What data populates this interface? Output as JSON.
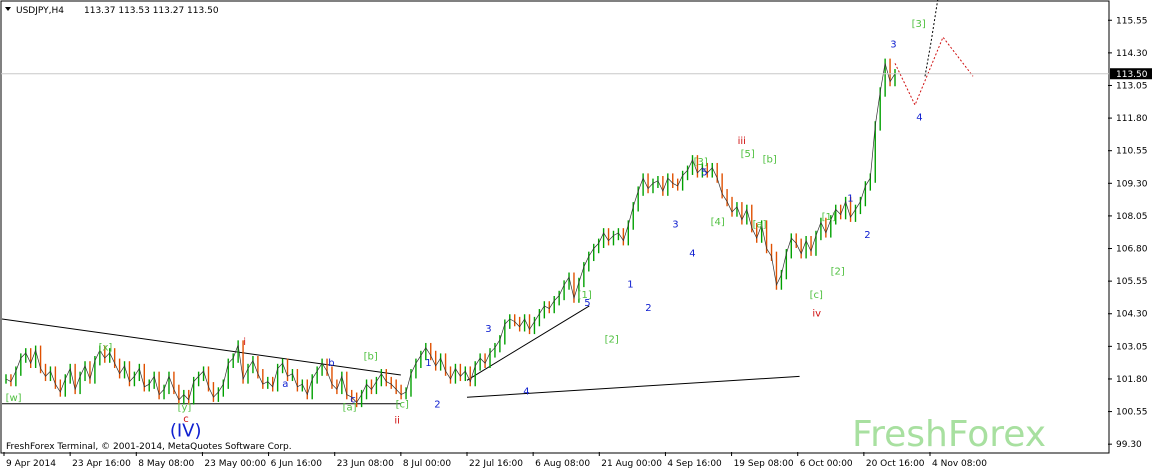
{
  "header": {
    "symbol": "USDJPY,H4",
    "ohlc": "113.37 113.53 113.27 113.50"
  },
  "price_marker": {
    "value": "113.50"
  },
  "watermark": "FreshForex",
  "copyright": "FreshForex Terminal, © 2001-2014, MetaQuotes Software Corp.",
  "colors": {
    "up": "#00a000",
    "down": "#e05000",
    "green_label": "#50c040",
    "blue_label": "#1020d0",
    "red_label": "#d01010",
    "grid": "#c8c8c8",
    "axis": "#000000",
    "watermark": "#a8e0a0"
  },
  "chart_data": {
    "type": "line",
    "title": "",
    "xlabel": "",
    "ylabel": "",
    "ylim": [
      99.0,
      116.25
    ],
    "y_ticks": [
      "115.55",
      "114.30",
      "113.05",
      "111.80",
      "110.55",
      "109.30",
      "108.05",
      "106.80",
      "105.55",
      "104.30",
      "103.05",
      "101.80",
      "100.55",
      "99.30"
    ],
    "x_ticks": [
      "9 Apr 2014",
      "23 Apr 16:00",
      "8 May 08:00",
      "23 May 00:00",
      "6 Jun 16:00",
      "23 Jun 08:00",
      "8 Jul 00:00",
      "22 Jul 16:00",
      "6 Aug 08:00",
      "21 Aug 00:00",
      "4 Sep 16:00",
      "19 Sep 08:00",
      "6 Oct 00:00",
      "20 Oct 16:00",
      "4 Nov 08:00"
    ],
    "series": [
      {
        "values": [
          101.8,
          101.7,
          102.1,
          102.6,
          102.8,
          102.4,
          102.9,
          102.2,
          101.9,
          102.1,
          101.6,
          101.3,
          101.8,
          102.2,
          101.4,
          101.9,
          102.3,
          101.8,
          102.5,
          102.9,
          102.6,
          102.8,
          102.4,
          102.0,
          102.3,
          101.7,
          101.9,
          102.2,
          101.5,
          101.6,
          101.9,
          101.2,
          101.4,
          101.9,
          101.4,
          101.0,
          101.2,
          101.0,
          101.7,
          101.9,
          102.1,
          101.5,
          101.1,
          101.3,
          101.6,
          102.4,
          102.6,
          103.1,
          101.8,
          102.2,
          102.5,
          102.0,
          101.6,
          101.7,
          101.5,
          102.2,
          102.4,
          101.9,
          102.0,
          101.5,
          101.6,
          101.2,
          101.8,
          102.1,
          102.4,
          102.1,
          101.6,
          101.4,
          101.9,
          101.2,
          101.1,
          100.9,
          101.2,
          101.6,
          101.4,
          101.7,
          102.0,
          101.7,
          101.6,
          101.4,
          101.2,
          101.3,
          102.0,
          102.4,
          102.7,
          103.0,
          102.7,
          102.3,
          102.6,
          102.1,
          101.8,
          102.2,
          101.9,
          102.1,
          101.7,
          102.3,
          102.6,
          102.4,
          102.8,
          103.0,
          103.3,
          103.9,
          104.1,
          104.0,
          103.8,
          104.1,
          103.7,
          104.0,
          104.3,
          104.6,
          104.5,
          104.8,
          105.0,
          105.4,
          105.7,
          104.9,
          105.5,
          106.1,
          106.5,
          106.8,
          107.0,
          107.4,
          107.1,
          107.3,
          107.4,
          107.1,
          107.7,
          108.4,
          109.0,
          109.5,
          109.1,
          109.3,
          109.4,
          109.0,
          109.5,
          109.3,
          109.2,
          109.6,
          109.8,
          110.2,
          109.7,
          109.9,
          109.7,
          109.9,
          109.5,
          108.9,
          108.6,
          108.2,
          108.4,
          107.9,
          108.3,
          107.6,
          107.2,
          107.7,
          106.8,
          106.5,
          105.4,
          105.8,
          106.6,
          107.2,
          107.0,
          106.6,
          107.1,
          106.7,
          107.3,
          107.8,
          107.4,
          107.9,
          108.3,
          108.1,
          108.6,
          108.0,
          108.3,
          108.6,
          109.2,
          109.5,
          111.5,
          112.8,
          113.9,
          113.2,
          113.5
        ]
      }
    ],
    "overlay_lines": [
      {
        "style": "solid",
        "from": [
          "9 Apr 2014",
          104.1
        ],
        "to": [
          "8 Jul 00:00",
          101.95
        ]
      },
      {
        "style": "solid",
        "from": [
          "9 Apr 2014",
          100.85
        ],
        "to": [
          "8 Jul 00:00",
          100.85
        ]
      },
      {
        "style": "solid",
        "from": [
          "22 Jul 16:00",
          101.75
        ],
        "to": [
          "21 Aug 00:00",
          104.6
        ]
      },
      {
        "style": "solid",
        "from": [
          "22 Jul 16:00",
          101.1
        ],
        "to": [
          "19 Sep 08:00",
          101.9
        ]
      },
      {
        "style": "red-dotted",
        "points": [
          [
            113.9
          ],
          [
            112.3
          ],
          [
            114.9
          ],
          [
            113.4
          ]
        ]
      },
      {
        "style": "black-dotted",
        "points": [
          [
            113.4
          ],
          [
            114.7
          ],
          [
            116.4
          ]
        ]
      }
    ],
    "annotations": [
      {
        "text": "[w]",
        "color": "green",
        "y": 100.95
      },
      {
        "text": "[x]",
        "color": "green",
        "y": 102.9
      },
      {
        "text": "[y]",
        "color": "green",
        "y": 100.6
      },
      {
        "text": "c",
        "color": "red",
        "y": 100.15
      },
      {
        "text": "(IV)",
        "color": "blue",
        "y": 99.6
      },
      {
        "text": "i",
        "color": "red",
        "y": 103.1
      },
      {
        "text": "a",
        "color": "blue",
        "y": 101.5
      },
      {
        "text": "b",
        "color": "blue",
        "y": 102.3
      },
      {
        "text": "c",
        "color": "blue",
        "y": 100.9
      },
      {
        "text": "[a]",
        "color": "green",
        "y": 100.6
      },
      {
        "text": "[b]",
        "color": "green",
        "y": 102.55
      },
      {
        "text": "[c]",
        "color": "green",
        "y": 100.7
      },
      {
        "text": "ii",
        "color": "red",
        "y": 100.1
      },
      {
        "text": "1",
        "color": "blue",
        "y": 102.3
      },
      {
        "text": "2",
        "color": "blue",
        "y": 100.7
      },
      {
        "text": "3",
        "color": "blue",
        "y": 103.6
      },
      {
        "text": "4",
        "color": "blue",
        "y": 101.2
      },
      {
        "text": "5",
        "color": "blue",
        "y": 104.6
      },
      {
        "text": "[1]",
        "color": "green",
        "y": 104.9
      },
      {
        "text": "[2]",
        "color": "green",
        "y": 103.2
      },
      {
        "text": "1",
        "color": "blue",
        "y": 105.3
      },
      {
        "text": "2",
        "color": "blue",
        "y": 104.4
      },
      {
        "text": "3",
        "color": "blue",
        "y": 107.6
      },
      {
        "text": "4",
        "color": "blue",
        "y": 106.5
      },
      {
        "text": "5",
        "color": "blue",
        "y": 109.6
      },
      {
        "text": "[3]",
        "color": "green",
        "y": 110.0
      },
      {
        "text": "[4]",
        "color": "green",
        "y": 107.7
      },
      {
        "text": "[5]",
        "color": "green",
        "y": 110.3
      },
      {
        "text": "iii",
        "color": "red",
        "y": 110.8
      },
      {
        "text": "[b]",
        "color": "green",
        "y": 110.1
      },
      {
        "text": "[a]",
        "color": "green",
        "y": 107.6
      },
      {
        "text": "[c]",
        "color": "green",
        "y": 104.9
      },
      {
        "text": "iv",
        "color": "red",
        "y": 104.2
      },
      {
        "text": "[1]",
        "color": "green",
        "y": 107.9
      },
      {
        "text": "[2]",
        "color": "green",
        "y": 105.8
      },
      {
        "text": "1",
        "color": "blue",
        "y": 108.6
      },
      {
        "text": "2",
        "color": "blue",
        "y": 107.2
      },
      {
        "text": "3",
        "color": "blue",
        "y": 114.5
      },
      {
        "text": "4",
        "color": "blue",
        "y": 111.7
      },
      {
        "text": "[3]",
        "color": "green",
        "y": 115.3
      }
    ]
  }
}
